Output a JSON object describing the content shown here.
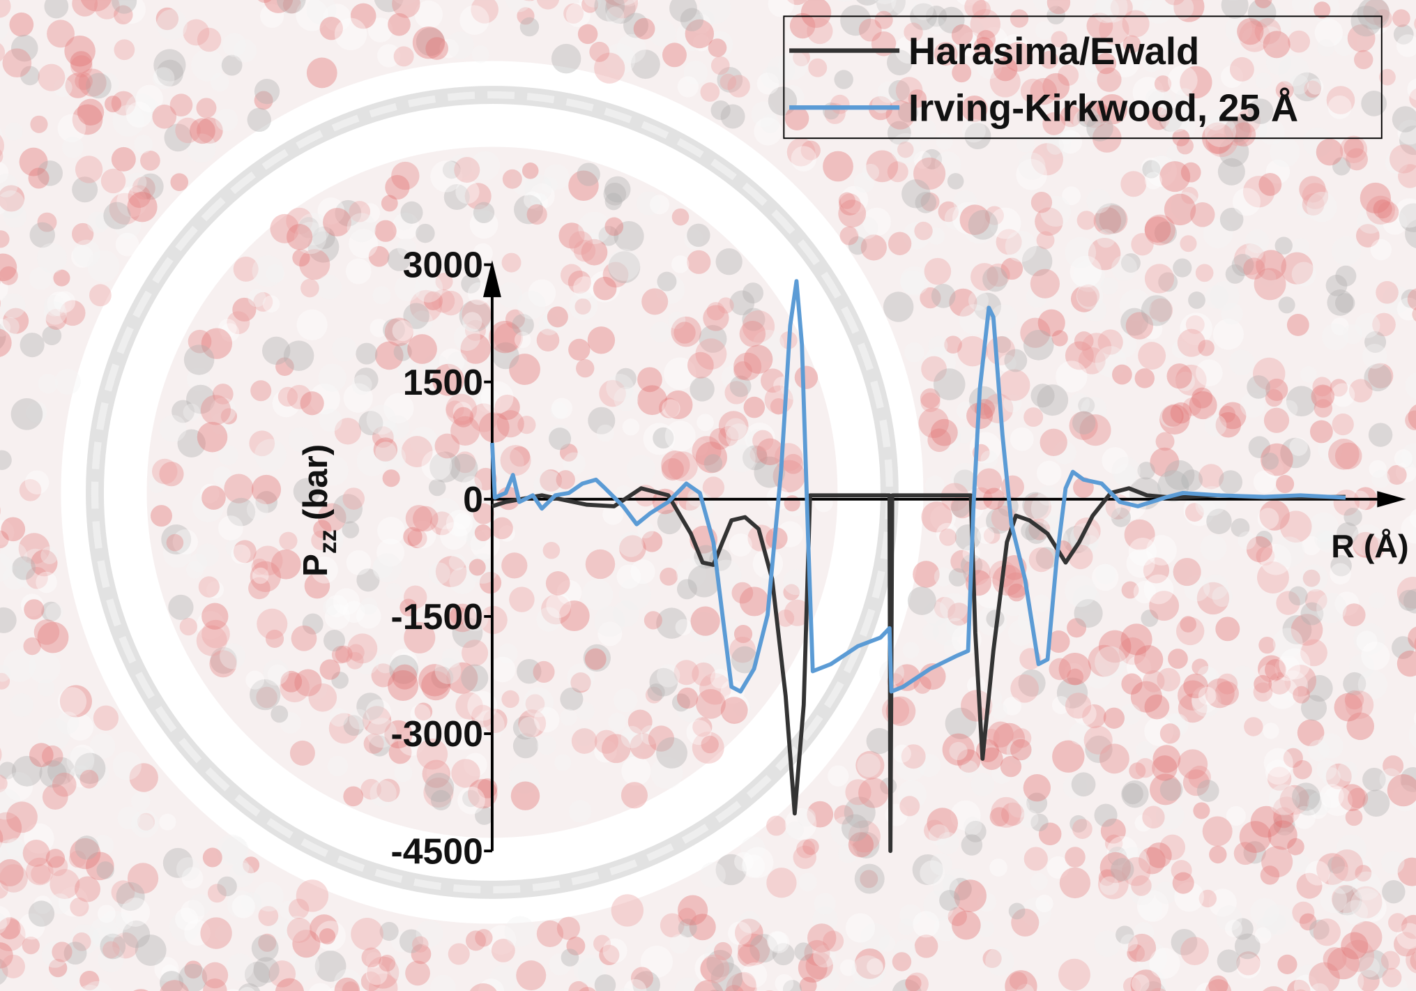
{
  "chart_data": {
    "type": "line",
    "ylabel": "P",
    "ylabel_sub": "zz",
    "ylabel_unit": "(bar)",
    "xlabel": "R (Å)",
    "xlim": [
      0,
      100
    ],
    "ylim": [
      -4500,
      3000
    ],
    "yticks": [
      3000,
      1500,
      0,
      -1500,
      -3000,
      -4500
    ],
    "legend": "upper right",
    "series": [
      {
        "name": "Harasima/Ewald",
        "color": "#333333",
        "x": [
          0,
          1.5,
          5.5,
          10.5,
          13.5,
          16.5,
          19.5,
          22,
          23.3,
          24.5,
          25.5,
          26.5,
          28,
          29.5,
          31,
          32.5,
          33.5,
          34.5,
          35.2,
          35.5,
          44,
          44.1,
          44.3,
          52.5,
          53,
          53.5,
          54.3,
          55.5,
          57,
          58,
          59.5,
          61.5,
          63.5,
          65,
          66.5,
          68.5,
          70.5,
          72.5,
          75.5,
          80.5,
          85.5,
          94.5
        ],
        "values": [
          -90,
          -35,
          50,
          -70,
          -90,
          140,
          50,
          -440,
          -810,
          -840,
          -550,
          -270,
          -230,
          -380,
          -1020,
          -2520,
          -4020,
          -2630,
          50,
          50,
          50,
          -4500,
          50,
          50,
          50,
          -1710,
          -3320,
          -1940,
          -550,
          -210,
          -270,
          -440,
          -810,
          -550,
          -210,
          80,
          140,
          50,
          20,
          50,
          20,
          30
        ]
      },
      {
        "name": "Irving-Kirkwood, 25 Å",
        "color": "#5b9bd5",
        "x": [
          0,
          0.3,
          1.5,
          2.3,
          3,
          4.5,
          5.5,
          7,
          8.5,
          10,
          11.5,
          12.5,
          14.5,
          16,
          17.5,
          19.5,
          21.5,
          23,
          24.5,
          25.5,
          26.5,
          27.5,
          29,
          30.5,
          32,
          33,
          33.7,
          34.3,
          35,
          35.5,
          37.5,
          40.5,
          43,
          44,
          44.2,
          45.5,
          48.5,
          51.5,
          52.7,
          53.3,
          54,
          55,
          55.5,
          56.5,
          57.5,
          59,
          60.5,
          61.5,
          62.5,
          63.5,
          64.3,
          65.5,
          67.5,
          69.5,
          71.5,
          74.5,
          76.5,
          80.5,
          85.5,
          89.5,
          94.5
        ],
        "values": [
          720,
          20,
          80,
          310,
          -35,
          50,
          -120,
          50,
          80,
          200,
          250,
          140,
          -90,
          -320,
          -180,
          -35,
          200,
          80,
          -550,
          -1480,
          -2400,
          -2460,
          -2170,
          -1480,
          370,
          2220,
          2790,
          1980,
          -550,
          -2200,
          -2110,
          -1880,
          -1770,
          -1650,
          -2460,
          -2400,
          -2170,
          -2000,
          -1940,
          -90,
          1410,
          2450,
          2330,
          830,
          -320,
          -1020,
          -2110,
          -2050,
          -780,
          140,
          350,
          250,
          200,
          -35,
          -90,
          20,
          80,
          50,
          30,
          50,
          20
        ]
      }
    ]
  }
}
